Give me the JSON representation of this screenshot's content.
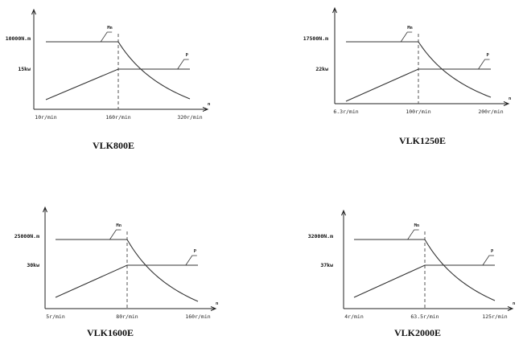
{
  "chart_data": [
    {
      "type": "line",
      "title": "VLK800E",
      "x_axis_symbol": "n",
      "x_ticks": [
        "10r/min",
        "160r/min",
        "320r/min"
      ],
      "x": [
        10,
        160,
        320
      ],
      "torque_label": "10000N.m",
      "power_label": "15kw",
      "series": [
        {
          "name": "Mn",
          "x": [
            10,
            160,
            320
          ],
          "shape": "constant-then-hyperbolic"
        },
        {
          "name": "P",
          "x": [
            10,
            160,
            320
          ],
          "shape": "linear-then-constant"
        }
      ]
    },
    {
      "type": "line",
      "title": "VLK1250E",
      "x_axis_symbol": "n",
      "x_ticks": [
        "6.3r/min",
        "100r/min",
        "200r/min"
      ],
      "x": [
        6.3,
        100,
        200
      ],
      "torque_label": "17500N.m",
      "power_label": "22kw",
      "series": [
        {
          "name": "Mn",
          "x": [
            6.3,
            100,
            200
          ],
          "shape": "constant-then-hyperbolic"
        },
        {
          "name": "P",
          "x": [
            6.3,
            100,
            200
          ],
          "shape": "linear-then-constant"
        }
      ]
    },
    {
      "type": "line",
      "title": "VLK1600E",
      "x_axis_symbol": "n",
      "x_ticks": [
        "5r/min",
        "80r/min",
        "160r/min"
      ],
      "x": [
        5,
        80,
        160
      ],
      "torque_label": "25000N.m",
      "power_label": "30kw",
      "series": [
        {
          "name": "Mn",
          "x": [
            5,
            80,
            160
          ],
          "shape": "constant-then-hyperbolic"
        },
        {
          "name": "P",
          "x": [
            5,
            80,
            160
          ],
          "shape": "linear-then-constant"
        }
      ]
    },
    {
      "type": "line",
      "title": "VLK2000E",
      "x_axis_symbol": "n",
      "x_ticks": [
        "4r/min",
        "63.5r/min",
        "125r/min"
      ],
      "x": [
        4,
        63.5,
        125
      ],
      "torque_label": "32000N.m",
      "power_label": "37kw",
      "series": [
        {
          "name": "Mn",
          "x": [
            4,
            63.5,
            125
          ],
          "shape": "constant-then-hyperbolic"
        },
        {
          "name": "P",
          "x": [
            4,
            63.5,
            125
          ],
          "shape": "linear-then-constant"
        }
      ]
    }
  ]
}
